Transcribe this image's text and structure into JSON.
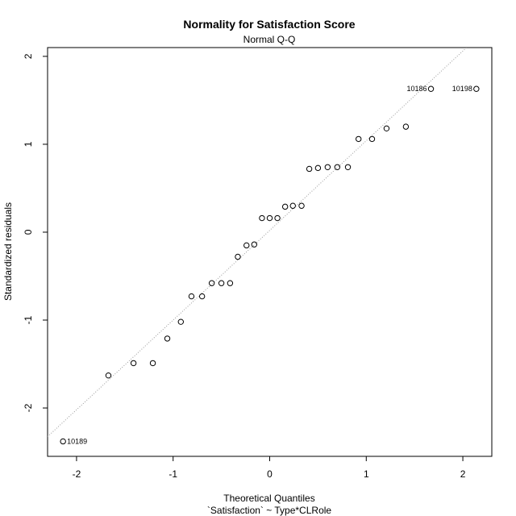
{
  "chart_data": {
    "type": "scatter",
    "title": "Normality for Satisfaction Score",
    "subtitle": "Normal Q-Q",
    "xlabel": "Theoretical Quantiles",
    "xlabel_sub": "`Satisfaction` ~ Type*CLRole",
    "ylabel": "Standardized residuals",
    "xlim": [
      -2.3,
      2.3
    ],
    "ylim": [
      -2.55,
      2.1
    ],
    "xticks": [
      -2,
      -1,
      0,
      1,
      2
    ],
    "yticks": [
      -2,
      -1,
      0,
      1,
      2
    ],
    "grid": false,
    "reference_line": {
      "intercept": 0.02,
      "slope": 1.02,
      "style": "dotted",
      "color": "#999999"
    },
    "points": [
      {
        "x": -2.14,
        "y": -2.38,
        "label": "10189"
      },
      {
        "x": -1.67,
        "y": -1.63
      },
      {
        "x": -1.41,
        "y": -1.49
      },
      {
        "x": -1.21,
        "y": -1.49
      },
      {
        "x": -1.06,
        "y": -1.21
      },
      {
        "x": -0.92,
        "y": -1.02
      },
      {
        "x": -0.81,
        "y": -0.73
      },
      {
        "x": -0.7,
        "y": -0.73
      },
      {
        "x": -0.6,
        "y": -0.58
      },
      {
        "x": -0.5,
        "y": -0.58
      },
      {
        "x": -0.41,
        "y": -0.58
      },
      {
        "x": -0.33,
        "y": -0.28
      },
      {
        "x": -0.24,
        "y": -0.15
      },
      {
        "x": -0.16,
        "y": -0.14
      },
      {
        "x": -0.08,
        "y": 0.16
      },
      {
        "x": 0.0,
        "y": 0.16
      },
      {
        "x": 0.08,
        "y": 0.16
      },
      {
        "x": 0.16,
        "y": 0.29
      },
      {
        "x": 0.24,
        "y": 0.3
      },
      {
        "x": 0.33,
        "y": 0.3
      },
      {
        "x": 0.41,
        "y": 0.72
      },
      {
        "x": 0.5,
        "y": 0.73
      },
      {
        "x": 0.6,
        "y": 0.74
      },
      {
        "x": 0.7,
        "y": 0.74
      },
      {
        "x": 0.81,
        "y": 0.74
      },
      {
        "x": 0.92,
        "y": 1.06
      },
      {
        "x": 1.06,
        "y": 1.06
      },
      {
        "x": 1.21,
        "y": 1.18
      },
      {
        "x": 1.41,
        "y": 1.2
      },
      {
        "x": 1.67,
        "y": 1.63,
        "label": "10186"
      },
      {
        "x": 2.14,
        "y": 1.63,
        "label": "10198"
      }
    ]
  }
}
